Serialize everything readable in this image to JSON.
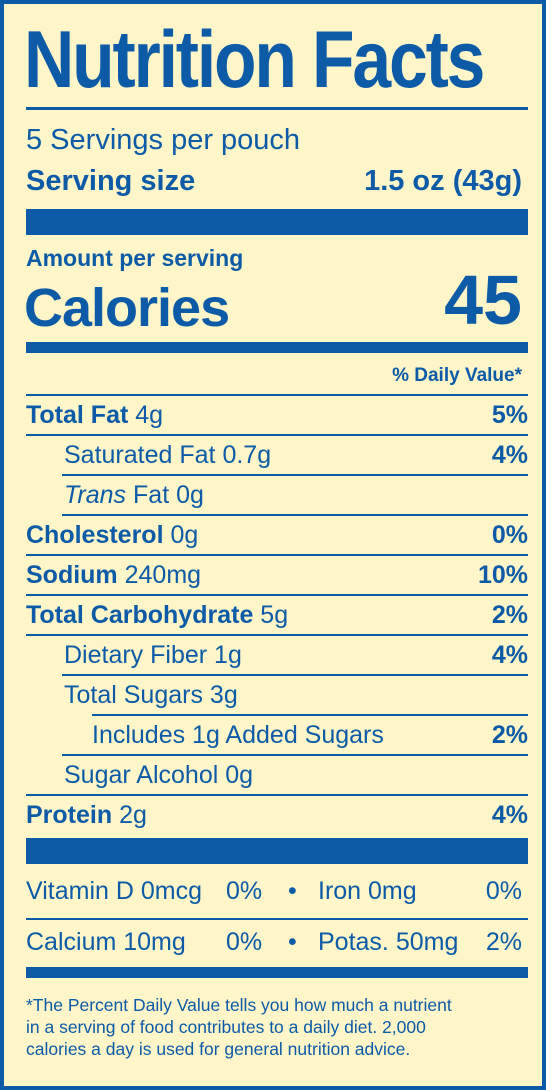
{
  "title": "Nutrition Facts",
  "servings": "5 Servings per pouch",
  "serving_size": {
    "label": "Serving size",
    "value": "1.5 oz (43g)"
  },
  "amount_per_serving": "Amount per serving",
  "calories": {
    "label": "Calories",
    "value": "45"
  },
  "daily_value_header": "% Daily Value*",
  "nutrients": {
    "total_fat": {
      "label": "Total Fat",
      "amount": "4g",
      "dv": "5%"
    },
    "saturated_fat": {
      "label": "Saturated Fat",
      "amount": "0.7g",
      "dv": "4%"
    },
    "trans_fat": {
      "label_italic": "Trans",
      "label": "Fat",
      "amount": "0g",
      "dv": ""
    },
    "cholesterol": {
      "label": "Cholesterol",
      "amount": "0g",
      "dv": "0%"
    },
    "sodium": {
      "label": "Sodium",
      "amount": "240mg",
      "dv": "10%"
    },
    "total_carbohydrate": {
      "label": "Total Carbohydrate",
      "amount": "5g",
      "dv": "2%"
    },
    "dietary_fiber": {
      "label": "Dietary Fiber",
      "amount": "1g",
      "dv": "4%"
    },
    "total_sugars": {
      "label": "Total Sugars",
      "amount": "3g",
      "dv": ""
    },
    "added_sugars": {
      "label": "Includes 1g Added Sugars",
      "dv": "2%"
    },
    "sugar_alcohol": {
      "label": "Sugar Alcohol",
      "amount": "0g",
      "dv": ""
    },
    "protein": {
      "label": "Protein",
      "amount": "2g",
      "dv": "4%"
    }
  },
  "vitamins": {
    "vitamin_d": {
      "label": "Vitamin D 0mcg",
      "dv": "0%"
    },
    "iron": {
      "label": "Iron 0mg",
      "dv": "0%"
    },
    "calcium": {
      "label": "Calcium 10mg",
      "dv": "0%"
    },
    "potassium": {
      "label": "Potas. 50mg",
      "dv": "2%"
    },
    "separator": "•"
  },
  "footnote": {
    "line1": "*The Percent Daily Value tells you how much a nutrient",
    "line2": "in a serving of food contributes to a daily diet. 2,000",
    "line3": "calories a day is used for general nutrition advice."
  },
  "colors": {
    "ink": "#0d5aa7",
    "background": "#fef5c8"
  }
}
